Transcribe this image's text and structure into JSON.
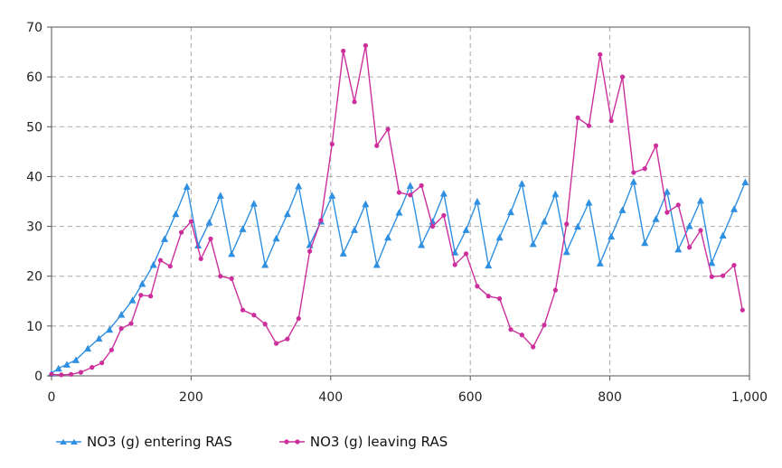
{
  "chart_data": {
    "type": "line",
    "title": "",
    "xlabel": "",
    "ylabel": "",
    "xlim": [
      0,
      1000
    ],
    "ylim": [
      0,
      70
    ],
    "x_ticks": [
      0,
      200,
      400,
      600,
      800,
      1000
    ],
    "x_tick_labels": [
      "0",
      "200",
      "400",
      "600",
      "800",
      "1,000"
    ],
    "y_ticks": [
      0,
      10,
      20,
      30,
      40,
      50,
      60,
      70
    ],
    "y_tick_labels": [
      "0",
      "10",
      "20",
      "30",
      "40",
      "50",
      "60",
      "70"
    ],
    "grid": true,
    "legend_position": "bottom-left",
    "series": [
      {
        "name": "NO3 (g) entering RAS",
        "color": "#2f8fe0",
        "marker": "triangle",
        "x": [
          0,
          10,
          22,
          35,
          52,
          68,
          83,
          100,
          116,
          130,
          146,
          162,
          178,
          194,
          210,
          226,
          242,
          258,
          274,
          290,
          306,
          322,
          338,
          354,
          370,
          386,
          402,
          418,
          434,
          450,
          466,
          482,
          498,
          514,
          530,
          546,
          562,
          578,
          594,
          610,
          626,
          642,
          658,
          674,
          690,
          706,
          722,
          738,
          754,
          770,
          786,
          802,
          818,
          834,
          850,
          866,
          882,
          898,
          914,
          930,
          946,
          962,
          978,
          994
        ],
        "y": [
          0.5,
          1.5,
          2.3,
          3.2,
          5.5,
          7.5,
          9.3,
          12.3,
          15.2,
          18.5,
          22.3,
          27.5,
          32.5,
          38.0,
          26.2,
          30.8,
          36.2,
          24.5,
          29.5,
          34.6,
          22.3,
          27.6,
          32.5,
          38.1,
          26.3,
          31.0,
          36.2,
          24.6,
          29.3,
          34.5,
          22.3,
          27.8,
          32.8,
          38.2,
          26.3,
          31.0,
          36.6,
          24.8,
          29.3,
          35.0,
          22.2,
          27.8,
          32.9,
          38.6,
          26.5,
          31.0,
          36.5,
          24.9,
          30.0,
          34.8,
          22.6,
          28.0,
          33.3,
          39.0,
          26.7,
          31.5,
          37.0,
          25.4,
          30.1,
          35.2,
          22.7,
          28.2,
          33.5,
          38.9
        ],
        "x_tail": [],
        "y_tail": []
      },
      {
        "name": "NO3 (g) leaving RAS",
        "color": "#cc2f9c",
        "marker": "circle",
        "x": [
          0,
          14,
          28,
          42,
          58,
          72,
          86,
          100,
          114,
          128,
          142,
          156,
          170,
          186,
          200,
          214,
          228,
          242,
          258,
          274,
          290,
          306,
          322,
          338,
          354,
          370,
          386,
          402,
          418,
          434,
          450,
          466,
          482,
          498,
          514,
          530,
          546,
          562,
          578,
          594,
          610,
          626,
          642,
          658,
          674,
          690,
          706,
          722,
          738,
          754,
          770,
          786,
          802,
          818,
          834,
          850,
          866,
          882,
          898,
          914,
          930,
          946,
          962,
          978,
          990
        ],
        "y": [
          0.3,
          0.2,
          0.3,
          0.7,
          1.7,
          2.6,
          5.2,
          9.5,
          10.5,
          16.2,
          16.0,
          23.2,
          22.0,
          28.8,
          31.0,
          23.5,
          27.5,
          20.0,
          19.5,
          13.2,
          12.2,
          10.4,
          6.5,
          7.4,
          11.5,
          25.0,
          31.2,
          46.5,
          65.2,
          55.0,
          66.3,
          46.2,
          49.5,
          36.8,
          36.3,
          38.2,
          30.0,
          32.2,
          22.3,
          24.5,
          18.0,
          16.0,
          15.5,
          9.3,
          8.2,
          5.8,
          10.2,
          17.2,
          30.5,
          51.8,
          50.2,
          64.5,
          51.2,
          60.0,
          40.8,
          41.6,
          46.2,
          32.8,
          34.3,
          25.8,
          29.2,
          19.9,
          20.1,
          22.2,
          13.2
        ]
      }
    ]
  }
}
